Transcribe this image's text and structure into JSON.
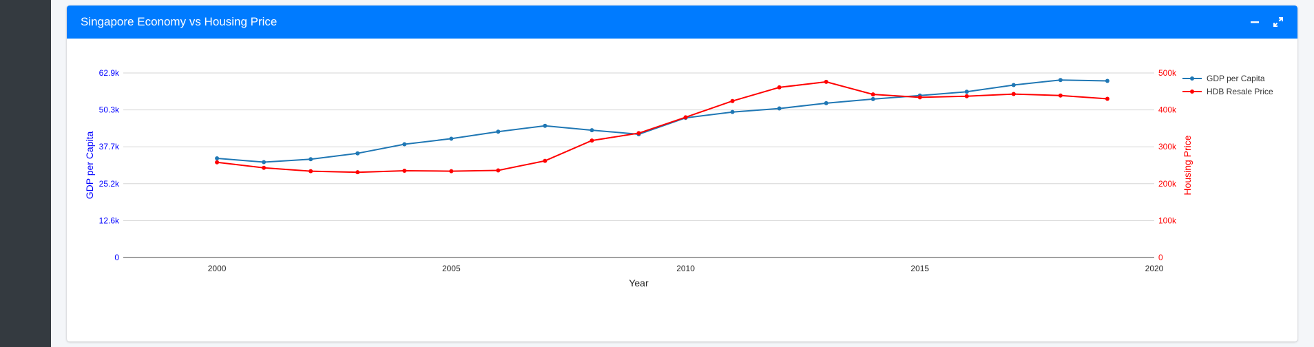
{
  "card": {
    "title": "Singapore Economy vs Housing Price"
  },
  "tools": {
    "minimize_icon": "minus-icon",
    "maximize_icon": "expand-icon"
  },
  "colors": {
    "header": "#007bff",
    "gdp": "#1f77b4",
    "housing": "#ff0000",
    "left_axis": "#0000ff",
    "right_axis": "#ff0000"
  },
  "chart_data": {
    "type": "line",
    "xlabel": "Year",
    "ylabel": "GDP per Capita",
    "y2label": "Housing Price",
    "xlim": [
      1998,
      2020
    ],
    "x_ticks": [
      2000,
      2005,
      2010,
      2015,
      2020
    ],
    "ylim": [
      0,
      62900
    ],
    "y_ticks": [
      0,
      12580,
      25160,
      37740,
      50320,
      62900
    ],
    "y_tick_labels": [
      "0",
      "12.6k",
      "25.2k",
      "37.7k",
      "50.3k",
      "62.9k"
    ],
    "y2lim": [
      0,
      500000
    ],
    "y2_ticks": [
      0,
      100000,
      200000,
      300000,
      400000,
      500000
    ],
    "y2_tick_labels": [
      "0",
      "100k",
      "200k",
      "300k",
      "400k",
      "500k"
    ],
    "grid": true,
    "legend_position": "top-right",
    "x": [
      2000,
      2001,
      2002,
      2003,
      2004,
      2005,
      2006,
      2007,
      2008,
      2009,
      2010,
      2011,
      2012,
      2013,
      2014,
      2015,
      2016,
      2017,
      2018,
      2019
    ],
    "series": [
      {
        "name": "GDP per Capita",
        "axis": "y",
        "values": [
          33800,
          32500,
          33500,
          35500,
          38600,
          40500,
          42900,
          44900,
          43400,
          42000,
          47600,
          49600,
          50800,
          52600,
          54000,
          55200,
          56500,
          58800,
          60500,
          60200
        ]
      },
      {
        "name": "HDB Resale Price",
        "axis": "y2",
        "values": [
          258000,
          243000,
          234000,
          231000,
          235000,
          234000,
          236000,
          262000,
          317000,
          337000,
          380000,
          424000,
          461000,
          476000,
          442000,
          434000,
          437000,
          443000,
          439000,
          430000
        ]
      }
    ]
  }
}
